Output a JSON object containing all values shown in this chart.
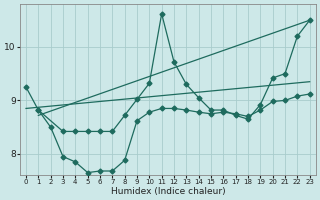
{
  "xlabel": "Humidex (Indice chaleur)",
  "bg_color": "#cde8e8",
  "grid_color": "#a8cccc",
  "line_color": "#1e6b5e",
  "xlim": [
    -0.5,
    23.5
  ],
  "ylim": [
    7.6,
    10.8
  ],
  "xticks": [
    0,
    1,
    2,
    3,
    4,
    5,
    6,
    7,
    8,
    9,
    10,
    11,
    12,
    13,
    14,
    15,
    16,
    17,
    18,
    19,
    20,
    21,
    22,
    23
  ],
  "yticks": [
    8,
    9,
    10
  ],
  "line1_x": [
    0,
    1,
    3,
    4,
    5,
    6,
    7,
    8,
    9,
    10,
    11,
    12,
    13,
    14,
    15,
    16,
    17,
    18,
    19,
    20,
    21,
    22,
    23
  ],
  "line1_y": [
    9.25,
    8.82,
    8.42,
    8.42,
    8.42,
    8.42,
    8.42,
    8.72,
    9.02,
    9.32,
    10.62,
    9.72,
    9.3,
    9.05,
    8.82,
    8.82,
    8.72,
    8.65,
    8.92,
    9.42,
    9.5,
    10.2,
    10.5
  ],
  "line2_x": [
    1,
    2,
    3,
    4,
    5,
    6,
    7,
    8,
    9,
    10,
    11,
    12,
    13,
    14,
    15,
    16,
    17,
    18,
    19,
    20,
    21,
    22,
    23
  ],
  "line2_y": [
    8.82,
    8.5,
    7.95,
    7.85,
    7.65,
    7.68,
    7.68,
    7.88,
    8.62,
    8.78,
    8.85,
    8.85,
    8.82,
    8.78,
    8.75,
    8.78,
    8.75,
    8.7,
    8.82,
    8.98,
    9.0,
    9.08,
    9.12
  ],
  "line3_x": [
    0,
    23
  ],
  "line3_y": [
    8.85,
    9.35
  ],
  "line4_x": [
    1,
    23
  ],
  "line4_y": [
    8.72,
    10.5
  ],
  "marker_size": 2.5,
  "linewidth": 0.9,
  "xlabel_fontsize": 6.5
}
